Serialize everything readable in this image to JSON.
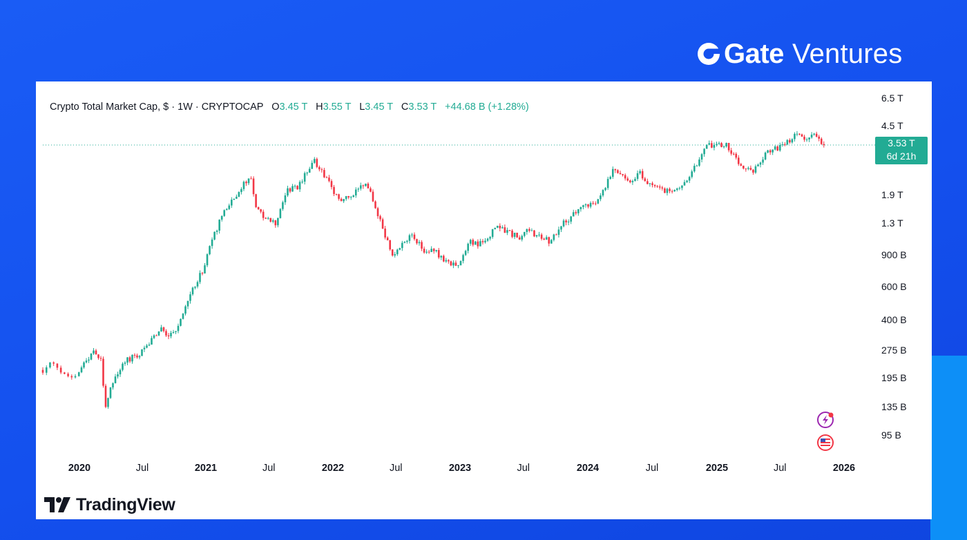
{
  "brand": {
    "name_bold": "Gate",
    "name_light": "Ventures"
  },
  "header": {
    "title": "Crypto Total Market Cap, $ · 1W · CRYPTOCAP",
    "o_label": "O",
    "o_value": "3.45 T",
    "h_label": "H",
    "h_value": "3.55 T",
    "l_label": "L",
    "l_value": "3.45 T",
    "c_label": "C",
    "c_value": "3.53 T",
    "change": "+44.68 B (+1.28%)"
  },
  "price_label": {
    "value": "3.53 T",
    "countdown": "6d 21h"
  },
  "footer": {
    "logo_text": "TradingView"
  },
  "colors": {
    "up": "#22ab94",
    "down": "#f23645",
    "background": "#1450ee",
    "accent_block": "#0d8ff7"
  },
  "icons": [
    "gate-logo-icon",
    "tradingview-logo-icon",
    "lightning-alert-icon",
    "us-flag-event-icon"
  ],
  "chart_data": {
    "type": "candlestick",
    "title": "Crypto Total Market Cap, $ · 1W · CRYPTOCAP",
    "interval": "1W",
    "y_scale": "log",
    "y_unit": "USD",
    "current_price": 3530000000000.0,
    "y_ticks": [
      {
        "label": "6.5 T",
        "value": 6500000000000.0
      },
      {
        "label": "4.5 T",
        "value": 4500000000000.0
      },
      {
        "label": "1.9 T",
        "value": 1900000000000.0
      },
      {
        "label": "1.3 T",
        "value": 1300000000000.0
      },
      {
        "label": "900 B",
        "value": 900000000000.0
      },
      {
        "label": "600 B",
        "value": 600000000000.0
      },
      {
        "label": "400 B",
        "value": 400000000000.0
      },
      {
        "label": "275 B",
        "value": 275000000000.0
      },
      {
        "label": "195 B",
        "value": 195000000000.0
      },
      {
        "label": "135 B",
        "value": 135000000000.0
      },
      {
        "label": "95 B",
        "value": 95000000000.0
      }
    ],
    "x_ticks": [
      {
        "label": "2020",
        "bold": true,
        "date": "2020-01-01"
      },
      {
        "label": "Jul",
        "bold": false,
        "date": "2020-07-01"
      },
      {
        "label": "2021",
        "bold": true,
        "date": "2021-01-01"
      },
      {
        "label": "Jul",
        "bold": false,
        "date": "2021-07-01"
      },
      {
        "label": "2022",
        "bold": true,
        "date": "2022-01-01"
      },
      {
        "label": "Jul",
        "bold": false,
        "date": "2022-07-01"
      },
      {
        "label": "2023",
        "bold": true,
        "date": "2023-01-01"
      },
      {
        "label": "Jul",
        "bold": false,
        "date": "2023-07-01"
      },
      {
        "label": "2024",
        "bold": true,
        "date": "2024-01-01"
      },
      {
        "label": "Jul",
        "bold": false,
        "date": "2024-07-01"
      },
      {
        "label": "2025",
        "bold": true,
        "date": "2025-01-01"
      },
      {
        "label": "Jul",
        "bold": false,
        "date": "2025-07-01"
      },
      {
        "label": "2026",
        "bold": true,
        "date": "2026-01-01"
      }
    ],
    "x_range": [
      "2019-10-22",
      "2025-11-10"
    ],
    "close_path": [
      [
        "2019-10-22",
        215000000000.0
      ],
      [
        "2019-11-10",
        235000000000.0
      ],
      [
        "2019-12-01",
        200000000000.0
      ],
      [
        "2019-12-20",
        192000000000.0
      ],
      [
        "2020-01-15",
        230000000000.0
      ],
      [
        "2020-02-10",
        280000000000.0
      ],
      [
        "2020-03-05",
        240000000000.0
      ],
      [
        "2020-03-15",
        135000000000.0
      ],
      [
        "2020-04-10",
        195000000000.0
      ],
      [
        "2020-05-10",
        240000000000.0
      ],
      [
        "2020-06-20",
        260000000000.0
      ],
      [
        "2020-07-30",
        320000000000.0
      ],
      [
        "2020-09-01",
        360000000000.0
      ],
      [
        "2020-09-15",
        320000000000.0
      ],
      [
        "2020-10-20",
        390000000000.0
      ],
      [
        "2020-11-20",
        550000000000.0
      ],
      [
        "2020-12-25",
        760000000000.0
      ],
      [
        "2021-01-15",
        1000000000000.0
      ],
      [
        "2021-02-20",
        1500000000000.0
      ],
      [
        "2021-04-15",
        2100000000000.0
      ],
      [
        "2021-05-10",
        2350000000000.0
      ],
      [
        "2021-05-25",
        1550000000000.0
      ],
      [
        "2021-06-25",
        1400000000000.0
      ],
      [
        "2021-07-20",
        1300000000000.0
      ],
      [
        "2021-08-20",
        2000000000000.0
      ],
      [
        "2021-09-20",
        2100000000000.0
      ],
      [
        "2021-11-08",
        2900000000000.0
      ],
      [
        "2021-12-15",
        2300000000000.0
      ],
      [
        "2022-01-25",
        1700000000000.0
      ],
      [
        "2022-03-30",
        2200000000000.0
      ],
      [
        "2022-04-20",
        1900000000000.0
      ],
      [
        "2022-05-20",
        1300000000000.0
      ],
      [
        "2022-06-20",
        900000000000.0
      ],
      [
        "2022-07-15",
        980000000000.0
      ],
      [
        "2022-08-15",
        1120000000000.0
      ],
      [
        "2022-09-15",
        960000000000.0
      ],
      [
        "2022-10-20",
        960000000000.0
      ],
      [
        "2022-11-15",
        820000000000.0
      ],
      [
        "2022-12-25",
        800000000000.0
      ],
      [
        "2023-01-25",
        1050000000000.0
      ],
      [
        "2023-03-10",
        1020000000000.0
      ],
      [
        "2023-04-15",
        1250000000000.0
      ],
      [
        "2023-06-15",
        1100000000000.0
      ],
      [
        "2023-07-15",
        1200000000000.0
      ],
      [
        "2023-09-10",
        1050000000000.0
      ],
      [
        "2023-10-25",
        1300000000000.0
      ],
      [
        "2023-12-10",
        1600000000000.0
      ],
      [
        "2024-01-25",
        1700000000000.0
      ],
      [
        "2024-03-15",
        2600000000000.0
      ],
      [
        "2024-04-30",
        2250000000000.0
      ],
      [
        "2024-05-25",
        2500000000000.0
      ],
      [
        "2024-07-05",
        2100000000000.0
      ],
      [
        "2024-08-05",
        1950000000000.0
      ],
      [
        "2024-09-15",
        2100000000000.0
      ],
      [
        "2024-10-15",
        2300000000000.0
      ],
      [
        "2024-11-20",
        3300000000000.0
      ],
      [
        "2024-12-15",
        3550000000000.0
      ],
      [
        "2025-01-25",
        3600000000000.0
      ],
      [
        "2025-03-10",
        2800000000000.0
      ],
      [
        "2025-04-08",
        2500000000000.0
      ],
      [
        "2025-05-20",
        3200000000000.0
      ],
      [
        "2025-07-10",
        3500000000000.0
      ],
      [
        "2025-08-15",
        3950000000000.0
      ],
      [
        "2025-09-20",
        3850000000000.0
      ],
      [
        "2025-10-06",
        4200000000000.0
      ],
      [
        "2025-10-25",
        3600000000000.0
      ],
      [
        "2025-11-10",
        3530000000000.0
      ]
    ]
  }
}
